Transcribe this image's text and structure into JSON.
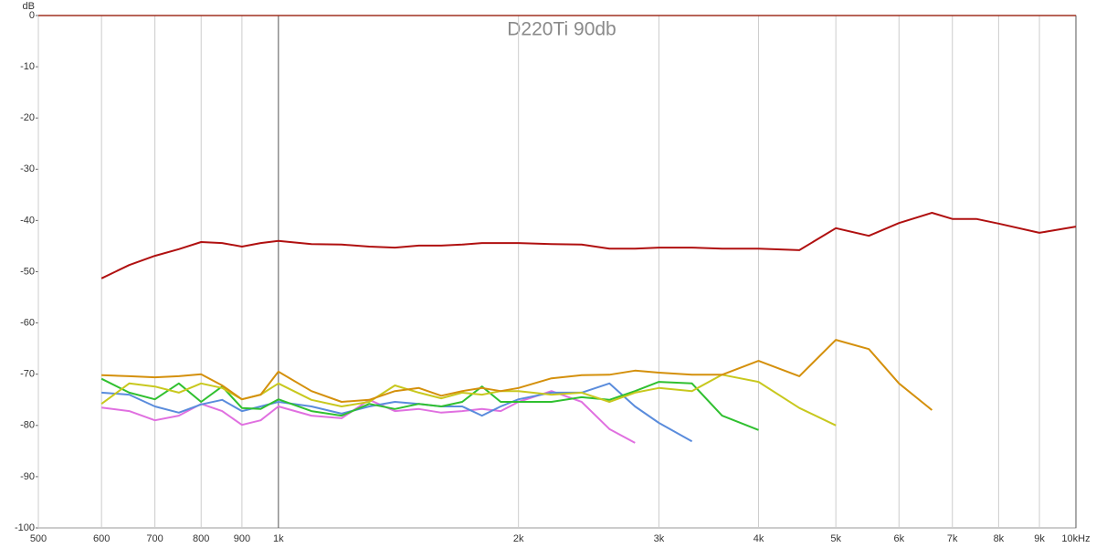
{
  "chart_data": {
    "type": "line",
    "title": "D220Ti 90db",
    "y_label": "dB",
    "xscale": "log",
    "grid": true,
    "x": [
      600,
      650,
      700,
      750,
      800,
      850,
      900,
      950,
      1000,
      1100,
      1200,
      1300,
      1400,
      1500,
      1600,
      1700,
      1800,
      1900,
      2000,
      2200,
      2400,
      2600,
      2800,
      3000,
      3300,
      3600,
      4000,
      4500,
      5000,
      5500,
      6000,
      6600,
      7000,
      7500,
      8000,
      9000,
      10000
    ],
    "xlim": [
      500,
      10000
    ],
    "xticks": [
      500,
      600,
      700,
      800,
      900,
      {
        "value": 1000,
        "label": "1k"
      },
      {
        "value": 2000,
        "label": "2k"
      },
      {
        "value": 3000,
        "label": "3k"
      },
      {
        "value": 4000,
        "label": "4k"
      },
      {
        "value": 5000,
        "label": "5k"
      },
      {
        "value": 6000,
        "label": "6k"
      },
      {
        "value": 7000,
        "label": "7k"
      },
      {
        "value": 8000,
        "label": "8k"
      },
      {
        "value": 9000,
        "label": "9k"
      },
      {
        "value": 10000,
        "label": "10kHz"
      }
    ],
    "ylim": [
      -100,
      0
    ],
    "yticks": [
      0,
      -10,
      -20,
      -30,
      -40,
      -50,
      -60,
      -70,
      -80,
      -90,
      -100
    ],
    "series": [
      {
        "color": "#b01010",
        "values": [
          -51.3,
          -48.7,
          -46.9,
          -45.6,
          -44.2,
          -44.4,
          -45.1,
          -44.4,
          -44.0,
          -44.6,
          -44.7,
          -45.1,
          -45.3,
          -44.9,
          -44.9,
          -44.7,
          -44.4,
          -44.4,
          -44.4,
          -44.6,
          -44.7,
          -45.5,
          -45.5,
          -45.3,
          -45.3,
          -45.5,
          -45.5,
          -45.8,
          -41.5,
          -43.0,
          -40.5,
          -38.5,
          -39.7,
          -39.7,
          -40.6,
          -42.4,
          -41.2
        ]
      },
      {
        "color": "#d4900c",
        "values": [
          -70.2,
          -70.4,
          -70.6,
          -70.4,
          -70.0,
          -72.2,
          -74.9,
          -74.0,
          -69.5,
          -73.3,
          -75.4,
          -75.0,
          -73.3,
          -72.7,
          -74.2,
          -73.3,
          -72.7,
          -73.3,
          -72.7,
          -70.8,
          -70.2,
          -70.1,
          -69.3,
          -69.7,
          -70.1,
          -70.1,
          -67.4,
          -70.4,
          -63.3,
          -65.1,
          -71.8,
          -77.0,
          null,
          null,
          null,
          null,
          null
        ]
      },
      {
        "color": "#c8c81e",
        "values": [
          -75.8,
          -71.8,
          -72.4,
          -73.6,
          -71.8,
          -72.7,
          -74.9,
          -74.0,
          -71.8,
          -75.0,
          -76.3,
          -75.4,
          -72.2,
          -73.6,
          -74.7,
          -73.6,
          -74.0,
          -73.3,
          -73.3,
          -74.0,
          -73.6,
          -75.4,
          -73.6,
          -72.7,
          -73.3,
          -70.1,
          -71.5,
          -76.6,
          -80.0,
          null,
          null,
          null,
          null,
          null,
          null,
          null,
          null
        ]
      },
      {
        "color": "#30c030",
        "values": [
          -70.9,
          -73.6,
          -74.9,
          -71.8,
          -75.4,
          -72.4,
          -76.6,
          -76.8,
          -74.9,
          -77.2,
          -78.1,
          -75.8,
          -76.8,
          -75.8,
          -76.3,
          -75.4,
          -72.4,
          -75.4,
          -75.4,
          -75.4,
          -74.5,
          -75.0,
          -73.3,
          -71.5,
          -71.8,
          -78.1,
          -80.9,
          null,
          null,
          null,
          null,
          null,
          null,
          null,
          null,
          null,
          null
        ]
      },
      {
        "color": "#5a8cdc",
        "values": [
          -73.6,
          -74.0,
          -76.3,
          -77.5,
          -75.9,
          -75.0,
          -77.2,
          -76.3,
          -75.4,
          -76.3,
          -77.7,
          -76.3,
          -75.4,
          -75.8,
          -76.3,
          -76.3,
          -78.1,
          -76.3,
          -74.9,
          -73.6,
          -73.6,
          -71.8,
          -76.3,
          -79.5,
          -83.1,
          null,
          null,
          null,
          null,
          null,
          null,
          null,
          null,
          null,
          null,
          null,
          null
        ]
      },
      {
        "color": "#e070e0",
        "values": [
          -76.5,
          -77.2,
          -79.0,
          -78.1,
          -75.8,
          -77.2,
          -79.9,
          -79.0,
          -76.3,
          -78.1,
          -78.6,
          -75.0,
          -77.2,
          -76.8,
          -77.5,
          -77.2,
          -76.8,
          -77.2,
          -75.4,
          -73.3,
          -75.4,
          -80.7,
          -83.4,
          null,
          null,
          null,
          null,
          null,
          null,
          null,
          null,
          null,
          null,
          null,
          null,
          null,
          null
        ]
      }
    ]
  }
}
